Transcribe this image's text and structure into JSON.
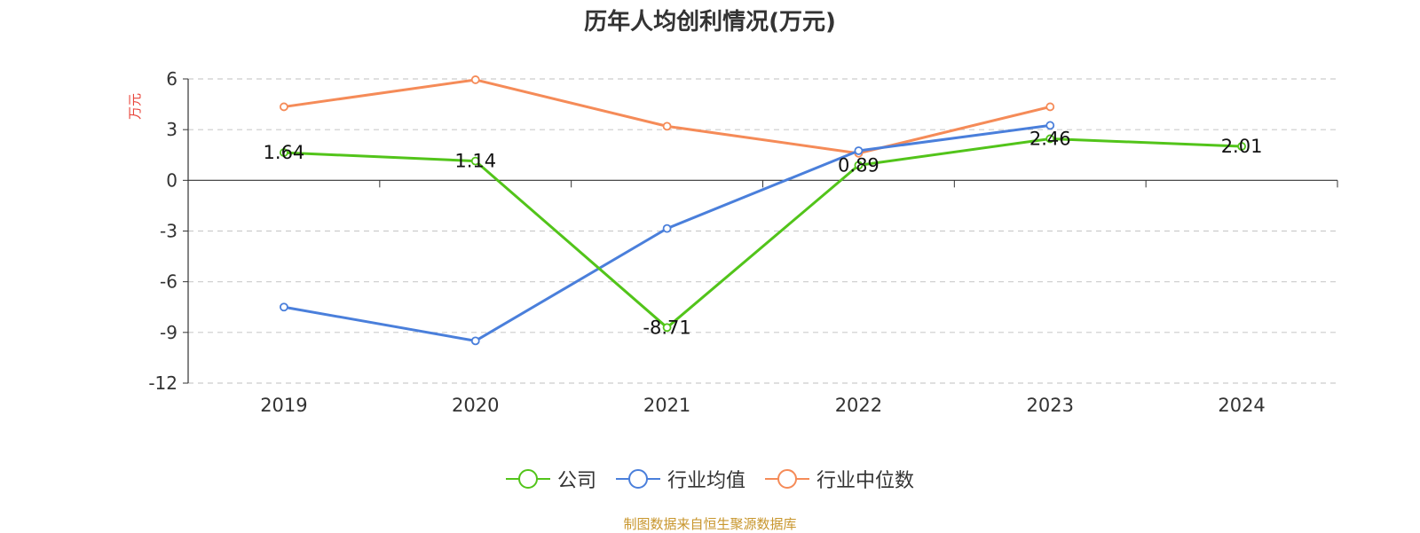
{
  "title": "历年人均创利情况(万元)",
  "source": "制图数据来自恒生聚源数据库",
  "colors": {
    "company": "#52c41a",
    "industry_avg": "#4a7fdb",
    "industry_median": "#f58b58",
    "axis_label": "#e8443a",
    "axis": "#333333",
    "grid": "#cccccc"
  },
  "chart_data": {
    "type": "line",
    "title": "历年人均创利情况(万元)",
    "ylabel": "万元",
    "categories": [
      "2019",
      "2020",
      "2021",
      "2022",
      "2023",
      "2024"
    ],
    "ylim": [
      -12,
      6
    ],
    "yticks": [
      6,
      3,
      0,
      -3,
      -6,
      -9,
      -12
    ],
    "grid": "horizontal-dashed",
    "legend_position": "bottom-center",
    "series": [
      {
        "name": "公司",
        "color": "#52c41a",
        "values": [
          1.64,
          1.14,
          -8.71,
          0.89,
          2.46,
          2.01
        ],
        "show_labels": true
      },
      {
        "name": "行业均值",
        "color": "#4a7fdb",
        "values": [
          -7.5,
          -9.5,
          -2.85,
          1.75,
          3.25,
          null
        ],
        "show_labels": false
      },
      {
        "name": "行业中位数",
        "color": "#f58b58",
        "values": [
          4.35,
          5.95,
          3.2,
          1.6,
          4.35,
          null
        ],
        "show_labels": false
      }
    ]
  }
}
